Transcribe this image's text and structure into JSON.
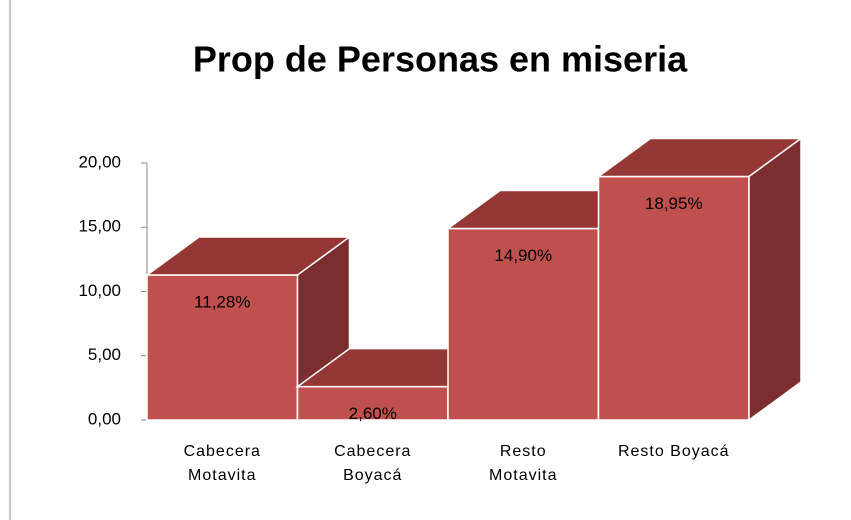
{
  "chart_data": {
    "type": "bar3d",
    "title": "Prop de Personas en miseria",
    "categories": [
      "Cabecera Motavita",
      "Cabecera Boyacá",
      "Resto Motavita",
      "Resto Boyacá"
    ],
    "values": [
      11.28,
      2.6,
      14.9,
      18.95
    ],
    "value_labels": [
      "11,28%",
      "2,60%",
      "14,90%",
      "18,95%"
    ],
    "color": "#c0504d",
    "ylim": [
      0,
      20
    ],
    "yticks": [
      {
        "value": 0,
        "label": "0,00"
      },
      {
        "value": 5,
        "label": "5,00"
      },
      {
        "value": 10,
        "label": "10,00"
      },
      {
        "value": 15,
        "label": "15,00"
      },
      {
        "value": 20,
        "label": "20,00"
      }
    ],
    "grid": false
  }
}
